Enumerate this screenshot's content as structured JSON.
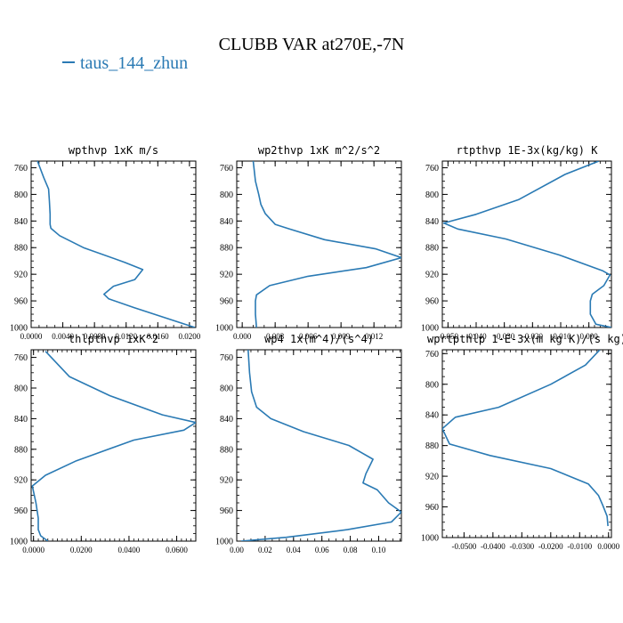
{
  "figure": {
    "title": "CLUBB VAR at270E,-7N",
    "legend": {
      "label": "taus_144_zhun",
      "color": "#2a7ab4"
    }
  },
  "chart_data": [
    {
      "type": "line",
      "title": "wpthvp  1xK m/s",
      "xlim": [
        0,
        0.0208
      ],
      "ylim": [
        750,
        1000
      ],
      "y_inverted": true,
      "xticks": [
        0,
        0.004,
        0.008,
        0.012,
        0.016,
        0.02
      ],
      "xtick_labels": [
        "0.0000",
        "0.0040",
        "0.0080",
        "0.0120",
        "0.0160",
        "0.0200"
      ],
      "yticks": [
        760,
        800,
        840,
        880,
        920,
        960,
        1000
      ],
      "ytick_labels": [
        "760",
        "800",
        "840",
        "880",
        "920",
        "960",
        "1000"
      ],
      "series": [
        {
          "color": "#2a7ab4",
          "x": [
            0.0008,
            0.0016,
            0.0022,
            0.0023,
            0.0024,
            0.0024,
            0.0025,
            0.0036,
            0.0066,
            0.0118,
            0.0141,
            0.0131,
            0.0104,
            0.0092,
            0.0098,
            0.013,
            0.0207
          ],
          "y": [
            750,
            775,
            792,
            810,
            830,
            845,
            851,
            862,
            880,
            902,
            913,
            928,
            938,
            950,
            957,
            970,
            1000
          ]
        }
      ]
    },
    {
      "type": "line",
      "title": "wp2thvp  1xK m^2/s^2",
      "xlim": [
        -0.0005,
        0.0145
      ],
      "ylim": [
        750,
        1000
      ],
      "y_inverted": true,
      "xticks": [
        0,
        0.003,
        0.006,
        0.009,
        0.012
      ],
      "xtick_labels": [
        "0.000",
        "0.003",
        "0.006",
        "0.009",
        "0.012"
      ],
      "yticks": [
        760,
        800,
        840,
        880,
        920,
        960,
        1000
      ],
      "ytick_labels": [
        "760",
        "800",
        "840",
        "880",
        "920",
        "960",
        "1000"
      ],
      "series": [
        {
          "color": "#2a7ab4",
          "x": [
            0.001,
            0.0012,
            0.0015,
            0.0017,
            0.0021,
            0.003,
            0.0043,
            0.0075,
            0.0122,
            0.0145,
            0.0113,
            0.006,
            0.0025,
            0.0013,
            0.0012,
            0.0012,
            0.0013
          ],
          "y": [
            750,
            780,
            800,
            815,
            829,
            845,
            852,
            868,
            882,
            895,
            910,
            923,
            937,
            951,
            960,
            980,
            1000
          ]
        }
      ]
    },
    {
      "type": "line",
      "title": "rtpthvp  1E-3x(kg/kg) K",
      "xlim": [
        -0.052,
        0.008
      ],
      "ylim": [
        750,
        1000
      ],
      "y_inverted": true,
      "xticks": [
        -0.05,
        -0.04,
        -0.03,
        -0.02,
        -0.01,
        0
      ],
      "xtick_labels": [
        "-0.050",
        "-0.040",
        "-0.030",
        "-0.020",
        "-0.010",
        "0.000"
      ],
      "yticks": [
        760,
        800,
        840,
        880,
        920,
        960,
        1000
      ],
      "ytick_labels": [
        "760",
        "800",
        "840",
        "880",
        "920",
        "960",
        "1000"
      ],
      "series": [
        {
          "color": "#2a7ab4",
          "x": [
            0.0035,
            -0.0085,
            -0.025,
            -0.04,
            -0.0515,
            -0.0465,
            -0.0295,
            -0.0105,
            0.005,
            0.0075,
            0.0053,
            0.0012,
            0.0005,
            0.0005,
            0.0025,
            0.008
          ],
          "y": [
            750,
            770,
            808,
            830,
            843,
            852,
            867,
            891,
            915,
            921,
            937,
            950,
            960,
            980,
            995,
            1000
          ]
        }
      ]
    },
    {
      "type": "line",
      "title": "thlpthvp  1xK^2",
      "xlim": [
        -0.001,
        0.068
      ],
      "ylim": [
        750,
        1000
      ],
      "y_inverted": true,
      "xticks": [
        0,
        0.02,
        0.04,
        0.06
      ],
      "xtick_labels": [
        "0.0000",
        "0.0200",
        "0.0400",
        "0.0600"
      ],
      "yticks": [
        760,
        800,
        840,
        880,
        920,
        960,
        1000
      ],
      "ytick_labels": [
        "760",
        "800",
        "840",
        "880",
        "920",
        "960",
        "1000"
      ],
      "series": [
        {
          "color": "#2a7ab4",
          "x": [
            0.005,
            0.015,
            0.032,
            0.054,
            0.068,
            0.063,
            0.042,
            0.018,
            0.005,
            -0.0005,
            0.001,
            0.002,
            0.002,
            0.003,
            0.006
          ],
          "y": [
            752,
            785,
            810,
            835,
            845,
            855,
            868,
            895,
            914,
            928,
            950,
            970,
            985,
            993,
            1000
          ]
        }
      ]
    },
    {
      "type": "line",
      "title": "wp4  1x(m^4)/(s^4)",
      "xlim": [
        0,
        0.116
      ],
      "ylim": [
        750,
        1000
      ],
      "y_inverted": true,
      "xticks": [
        0,
        0.02,
        0.04,
        0.06,
        0.08,
        0.1
      ],
      "xtick_labels": [
        "0.00",
        "0.02",
        "0.04",
        "0.06",
        "0.08",
        "0.10"
      ],
      "yticks": [
        760,
        800,
        840,
        880,
        920,
        960,
        1000
      ],
      "ytick_labels": [
        "760",
        "800",
        "840",
        "880",
        "920",
        "960",
        "1000"
      ],
      "series": [
        {
          "color": "#2a7ab4",
          "x": [
            0.008,
            0.009,
            0.0105,
            0.014,
            0.024,
            0.047,
            0.079,
            0.096,
            0.091,
            0.089,
            0.099,
            0.107,
            0.116,
            0.109,
            0.078,
            0.035,
            0.003
          ],
          "y": [
            750,
            780,
            805,
            825,
            840,
            857,
            875,
            893,
            912,
            924,
            933,
            950,
            962,
            975,
            985,
            995,
            1000
          ]
        }
      ]
    },
    {
      "type": "line",
      "title": "wprtpthlp  1-E-3x(m kg K)/(s kg)",
      "xlim": [
        -0.0575,
        0.001
      ],
      "ylim": [
        755,
        1000
      ],
      "y_inverted": true,
      "xticks": [
        -0.05,
        -0.04,
        -0.03,
        -0.02,
        -0.01,
        0
      ],
      "xtick_labels": [
        "-0.0500",
        "-0.0400",
        "-0.0300",
        "-0.0200",
        "-0.0100",
        "0.0000"
      ],
      "yticks": [
        760,
        800,
        840,
        880,
        920,
        960,
        1000
      ],
      "ytick_labels": [
        "760",
        "800",
        "840",
        "880",
        "920",
        "960",
        "1000"
      ],
      "series": [
        {
          "color": "#2a7ab4",
          "x": [
            -0.003,
            -0.008,
            -0.02,
            -0.038,
            -0.053,
            -0.0575,
            -0.055,
            -0.041,
            -0.02,
            -0.007,
            -0.0035,
            -0.002,
            -0.0005,
            -0.0002
          ],
          "y": [
            755,
            775,
            800,
            830,
            843,
            858,
            878,
            893,
            910,
            930,
            945,
            958,
            972,
            985
          ]
        }
      ]
    }
  ]
}
